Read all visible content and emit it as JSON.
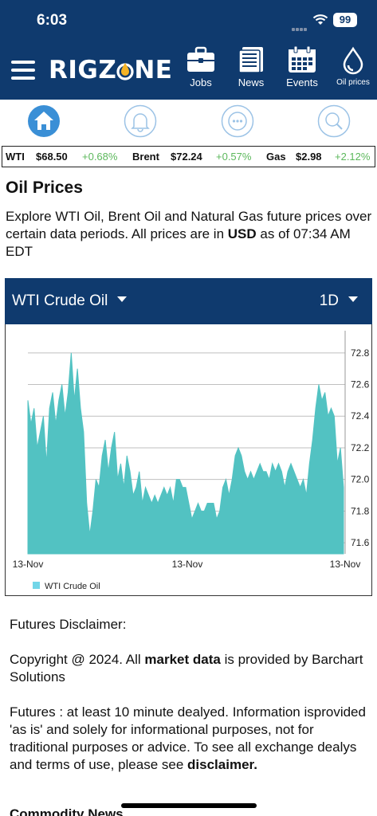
{
  "status_bar": {
    "time": "6:03",
    "battery": "99"
  },
  "header": {
    "logo_left": "RIGZ",
    "logo_right": "NE",
    "nav": [
      {
        "label": "Jobs",
        "icon": "briefcase-icon"
      },
      {
        "label": "News",
        "icon": "newspaper-icon"
      },
      {
        "label": "Events",
        "icon": "calendar-icon"
      },
      {
        "label": "Oil prices",
        "icon": "oil-drop-icon"
      }
    ]
  },
  "iconbar": [
    "home-icon",
    "bell-icon",
    "more-icon",
    "search-icon"
  ],
  "ticker": [
    {
      "name": "WTI",
      "price": "$68.50",
      "change": "+0.68%"
    },
    {
      "name": "Brent",
      "price": "$72.24",
      "change": "+0.57%"
    },
    {
      "name": "Gas",
      "price": "$2.98",
      "change": "+2.12%"
    }
  ],
  "page": {
    "title": "Oil Prices",
    "intro_a": "Explore WTI Oil, Brent Oil and Natural Gas future prices over certain data periods. All prices are in ",
    "intro_bold": "USD",
    "intro_b": " as of 07:34 AM EDT"
  },
  "chart_panel": {
    "selector": "WTI Crude Oil",
    "period": "1D"
  },
  "colors": {
    "header": "#0f3a6e",
    "area": "#52c2c2",
    "positive": "#5cb85c",
    "logo_accent": "#f5b325"
  },
  "chart_data": {
    "type": "area",
    "x_tick_labels": [
      "13-Nov",
      "13-Nov",
      "13-Nov"
    ],
    "y_ticks": [
      71.6,
      71.8,
      72.0,
      72.2,
      72.4,
      72.6,
      72.8
    ],
    "ylim": [
      71.53,
      72.93
    ],
    "grid": true,
    "legend_position": "bottom-left",
    "series": [
      {
        "name": "WTI Crude Oil",
        "values": [
          72.5,
          72.35,
          72.45,
          72.2,
          72.3,
          72.4,
          72.1,
          72.45,
          72.55,
          72.35,
          72.5,
          72.6,
          72.4,
          72.55,
          72.8,
          72.5,
          72.7,
          72.45,
          72.3,
          71.85,
          71.65,
          71.8,
          72.0,
          71.95,
          72.15,
          72.25,
          72.05,
          72.2,
          72.3,
          72.0,
          72.1,
          71.95,
          72.15,
          72.05,
          71.9,
          71.95,
          72.05,
          71.85,
          71.95,
          71.9,
          71.85,
          71.9,
          71.85,
          71.9,
          71.95,
          71.9,
          71.95,
          71.85,
          72.0,
          72.0,
          71.95,
          71.95,
          71.85,
          71.75,
          71.8,
          71.85,
          71.8,
          71.8,
          71.85,
          71.85,
          71.85,
          71.75,
          71.8,
          71.95,
          72.0,
          71.9,
          72.0,
          72.15,
          72.2,
          72.15,
          72.05,
          72.0,
          72.05,
          72.0,
          72.05,
          72.1,
          72.05,
          72.05,
          72.0,
          72.1,
          72.05,
          72.1,
          72.05,
          71.95,
          72.05,
          72.1,
          72.05,
          72.0,
          71.95,
          72.0,
          71.9,
          72.1,
          72.25,
          72.45,
          72.6,
          72.5,
          72.55,
          72.4,
          72.45,
          72.4,
          72.1,
          72.2,
          71.95
        ]
      }
    ]
  },
  "disclaimer": {
    "heading": "Futures Disclaimer:",
    "copyright_a": "Copyright @ 2024. All ",
    "copyright_bold": "market data",
    "copyright_b": " is provided by Barchart Solutions",
    "futures_text": "Futures : at least 10 minute dealyed. Information isprovided 'as is' and solely for informational purposes, not for traditional purposes or advice. To see all exchange dealys and terms of use, please see ",
    "futures_link": "disclaimer."
  },
  "next_section": "Commodity News"
}
